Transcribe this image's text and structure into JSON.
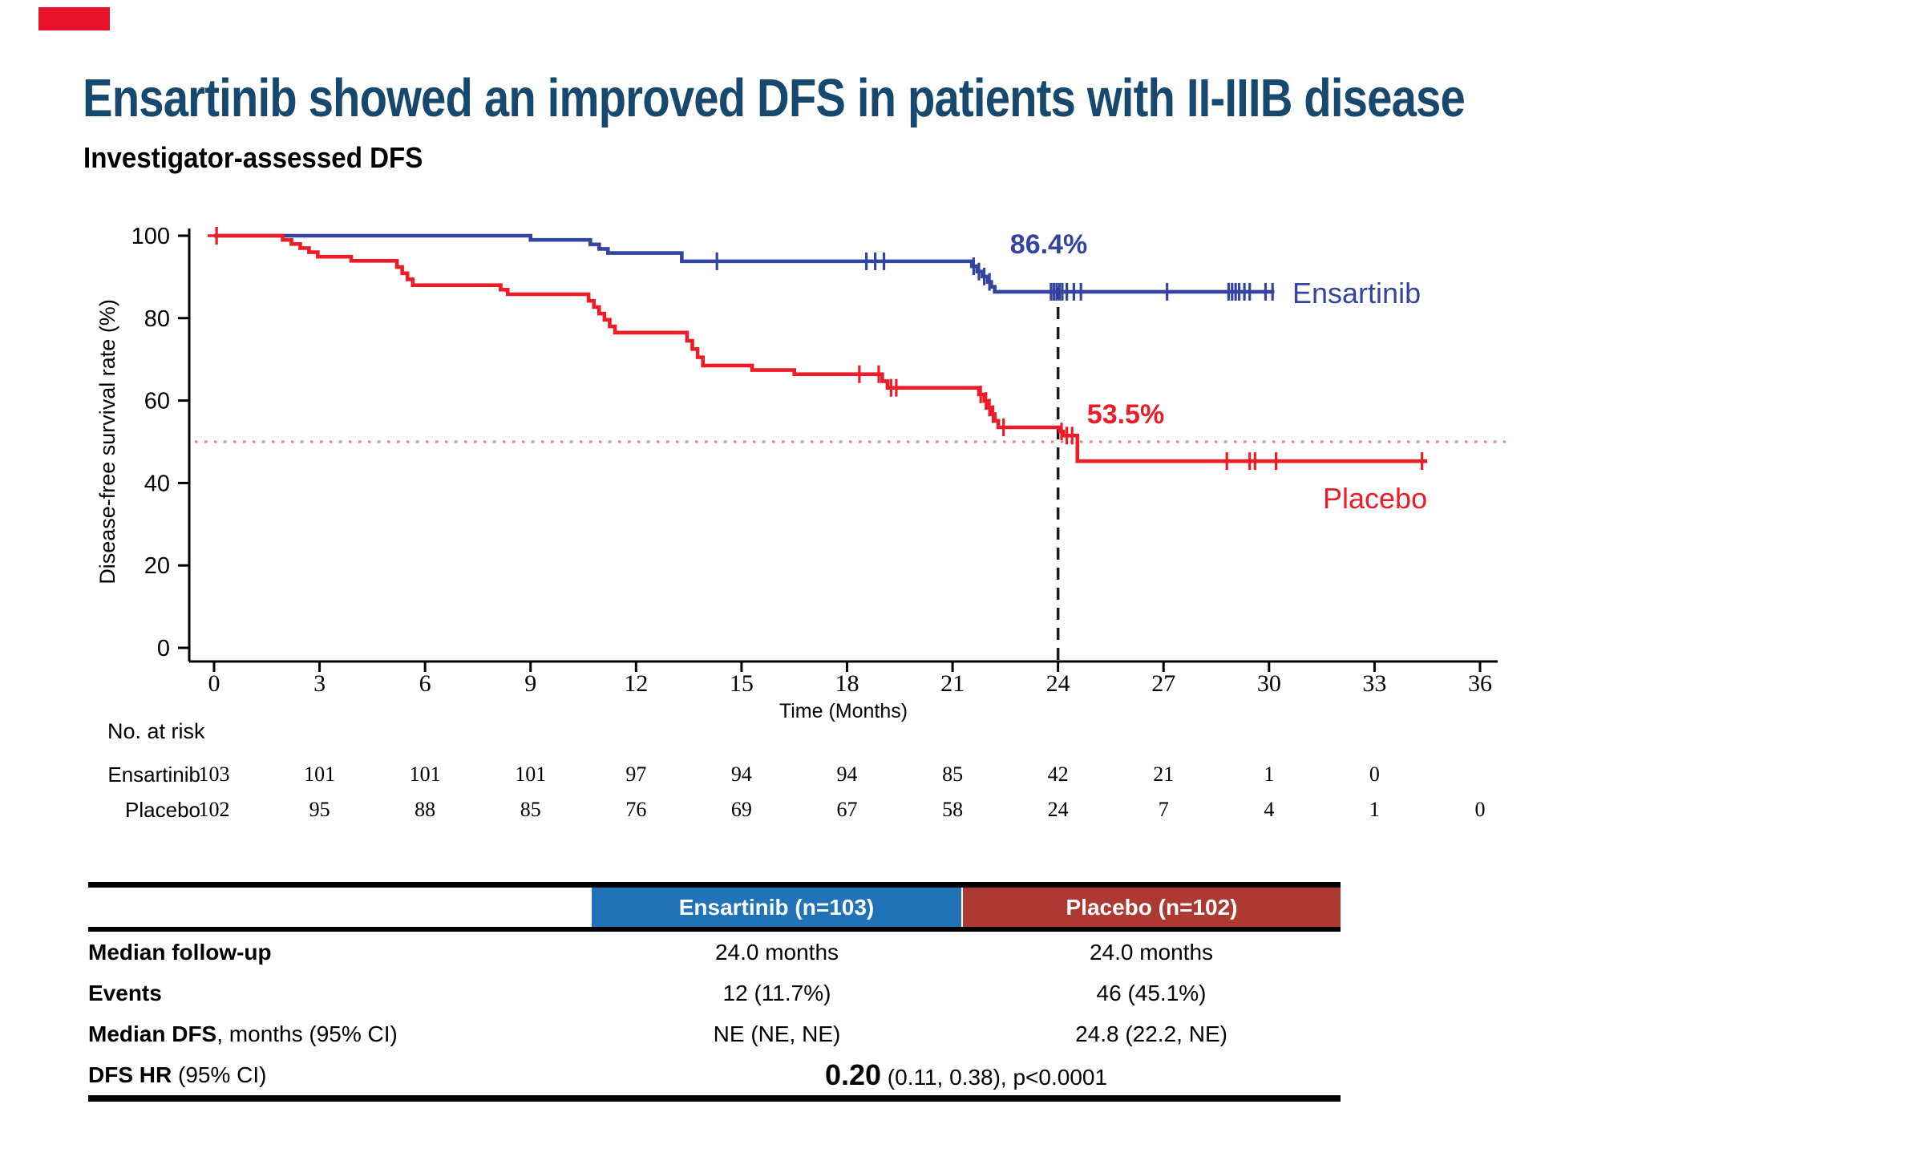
{
  "accent_bar": {
    "color": "#E8112A"
  },
  "title": "Ensartinib showed an improved DFS in patients with II-IIIB disease",
  "title_color": "#17496F",
  "subtitle": "Investigator-assessed DFS",
  "chart_data": {
    "type": "line",
    "subtype": "kaplan-meier-step",
    "title": "",
    "xlabel": "Time (Months)",
    "ylabel": "Disease-free survival rate (%)",
    "xlim": [
      0,
      36
    ],
    "ylim": [
      0,
      100
    ],
    "xticks": [
      0,
      3,
      6,
      9,
      12,
      15,
      18,
      21,
      24,
      27,
      30,
      33,
      36
    ],
    "yticks": [
      0,
      20,
      40,
      60,
      80,
      100
    ],
    "grid": false,
    "legend_position": "curve-end-labels",
    "reference_lines": {
      "dashed_vertical_month": 24,
      "dotted_horizontal_pct": 50,
      "dotted_color": "#F2827A",
      "dashed_color": "#1a1a1a"
    },
    "series": [
      {
        "name": "Ensartinib",
        "color": "#3445A0",
        "annotation": "86.4%",
        "start_value": 100,
        "end_month": 30.15,
        "steps": [
          [
            9.0,
            99.0
          ],
          [
            10.7,
            97.9
          ],
          [
            10.95,
            96.8
          ],
          [
            11.2,
            95.8
          ],
          [
            13.3,
            93.8
          ],
          [
            21.55,
            92.6
          ],
          [
            21.7,
            91.3
          ],
          [
            21.85,
            90.1
          ],
          [
            22.0,
            88.8
          ],
          [
            22.1,
            87.6
          ],
          [
            22.2,
            86.4
          ]
        ],
        "censors": [
          [
            0.07,
            100
          ],
          [
            14.3,
            93.8
          ],
          [
            18.55,
            93.8
          ],
          [
            18.8,
            93.8
          ],
          [
            19.05,
            93.8
          ],
          [
            21.6,
            92.6
          ],
          [
            21.75,
            91.3
          ],
          [
            21.9,
            90.1
          ],
          [
            22.05,
            88.8
          ],
          [
            23.8,
            86.4
          ],
          [
            23.88,
            86.4
          ],
          [
            23.96,
            86.4
          ],
          [
            24.04,
            86.4
          ],
          [
            24.12,
            86.4
          ],
          [
            24.25,
            86.4
          ],
          [
            24.45,
            86.4
          ],
          [
            24.65,
            86.4
          ],
          [
            27.1,
            86.4
          ],
          [
            28.85,
            86.4
          ],
          [
            28.95,
            86.4
          ],
          [
            29.05,
            86.4
          ],
          [
            29.15,
            86.4
          ],
          [
            29.3,
            86.4
          ],
          [
            29.45,
            86.4
          ],
          [
            29.9,
            86.4
          ],
          [
            30.1,
            86.4
          ]
        ]
      },
      {
        "name": "Placebo",
        "color": "#EC1C28",
        "annotation": "53.5%",
        "start_value": 100,
        "end_month": 34.5,
        "steps": [
          [
            1.95,
            99.0
          ],
          [
            2.2,
            98.0
          ],
          [
            2.45,
            97.0
          ],
          [
            2.7,
            96.0
          ],
          [
            2.95,
            94.9
          ],
          [
            3.9,
            93.9
          ],
          [
            5.2,
            92.4
          ],
          [
            5.35,
            90.9
          ],
          [
            5.5,
            89.4
          ],
          [
            5.65,
            88.0
          ],
          [
            8.15,
            86.9
          ],
          [
            8.35,
            85.8
          ],
          [
            10.65,
            84.2
          ],
          [
            10.8,
            82.7
          ],
          [
            10.95,
            81.1
          ],
          [
            11.1,
            79.6
          ],
          [
            11.25,
            78.0
          ],
          [
            11.4,
            76.5
          ],
          [
            13.45,
            74.5
          ],
          [
            13.6,
            72.5
          ],
          [
            13.75,
            70.5
          ],
          [
            13.9,
            68.5
          ],
          [
            15.3,
            67.4
          ],
          [
            16.5,
            66.4
          ],
          [
            19.0,
            64.7
          ],
          [
            19.15,
            63.1
          ],
          [
            21.75,
            61.5
          ],
          [
            21.9,
            59.9
          ],
          [
            22.0,
            58.3
          ],
          [
            22.1,
            56.7
          ],
          [
            22.2,
            55.1
          ],
          [
            22.3,
            53.5
          ],
          [
            24.05,
            52.5
          ],
          [
            24.15,
            51.5
          ],
          [
            24.55,
            45.3
          ]
        ],
        "censors": [
          [
            0.07,
            100
          ],
          [
            18.35,
            66.4
          ],
          [
            18.9,
            66.4
          ],
          [
            19.25,
            63.1
          ],
          [
            19.4,
            63.1
          ],
          [
            21.8,
            61.5
          ],
          [
            21.95,
            59.9
          ],
          [
            22.05,
            58.3
          ],
          [
            22.15,
            56.7
          ],
          [
            22.45,
            53.5
          ],
          [
            24.1,
            52.5
          ],
          [
            24.25,
            51.5
          ],
          [
            24.4,
            51.5
          ],
          [
            28.8,
            45.3
          ],
          [
            29.45,
            45.3
          ],
          [
            29.6,
            45.3
          ],
          [
            30.2,
            45.3
          ],
          [
            34.35,
            45.3
          ]
        ]
      }
    ]
  },
  "risk_table": {
    "heading": "No. at risk",
    "months": [
      0,
      3,
      6,
      9,
      12,
      15,
      18,
      21,
      24,
      27,
      30,
      33,
      36
    ],
    "rows": [
      {
        "label": "Ensartinib",
        "values": [
          "103",
          "101",
          "101",
          "101",
          "97",
          "94",
          "94",
          "85",
          "42",
          "21",
          "1",
          "0",
          ""
        ]
      },
      {
        "label": "Placebo",
        "values": [
          "102",
          "95",
          "88",
          "85",
          "76",
          "69",
          "67",
          "58",
          "24",
          "7",
          "4",
          "1",
          "0"
        ]
      }
    ]
  },
  "summary_table": {
    "col_headers": [
      {
        "label": "Ensartinib (n=103)",
        "bg": "#2173B8"
      },
      {
        "label": "Placebo (n=102)",
        "bg": "#AE3932"
      }
    ],
    "rows": [
      {
        "label_bold": "Median follow-up",
        "label_rest": "",
        "values": [
          "24.0 months",
          "24.0 months"
        ]
      },
      {
        "label_bold": "Events",
        "label_rest": "",
        "values": [
          "12 (11.7%)",
          "46 (45.1%)"
        ]
      },
      {
        "label_bold": "Median DFS",
        "label_rest": ", months (95% CI)",
        "values": [
          "NE (NE, NE)",
          "24.8 (22.2, NE)"
        ]
      },
      {
        "label_bold": "DFS HR",
        "label_rest": " (95% CI)",
        "merged_value_big": "0.20",
        "merged_value_rest": " (0.11, 0.38), p<0.0001"
      }
    ]
  }
}
